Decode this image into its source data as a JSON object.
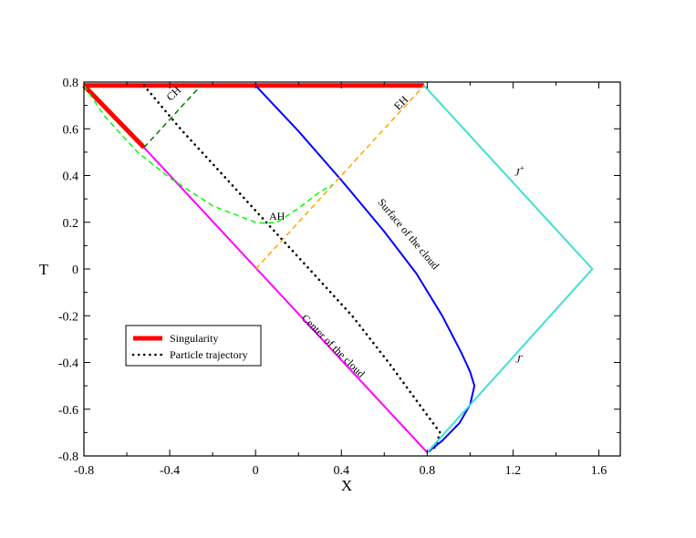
{
  "chart_data": {
    "type": "line",
    "title": "",
    "xlabel": "X",
    "ylabel": "T",
    "xlim": [
      -0.8,
      1.7
    ],
    "ylim": [
      -0.8,
      0.8
    ],
    "xticks": [
      "-0.8",
      "-0.4",
      "0",
      "0.4",
      "0.8",
      "1.2",
      "1.6"
    ],
    "yticks": [
      "-0.8",
      "-0.6",
      "-0.4",
      "-0.2",
      "0",
      "0.2",
      "0.4",
      "0.6",
      "0.8"
    ],
    "grid": false,
    "legend_position": "lower-left",
    "series": [
      {
        "name": "Singularity",
        "color": "#ff0000",
        "style": "solid-thick",
        "segments": [
          [
            [
              -0.8,
              0.785
            ],
            [
              0.785,
              0.785
            ]
          ],
          [
            [
              -0.8,
              0.785
            ],
            [
              -0.52,
              0.52
            ]
          ]
        ]
      },
      {
        "name": "Particle trajectory",
        "color": "#000000",
        "style": "dotted",
        "points": [
          [
            -0.52,
            0.785
          ],
          [
            -0.35,
            0.6
          ],
          [
            -0.15,
            0.4
          ],
          [
            0.05,
            0.2
          ],
          [
            0.25,
            0.0
          ],
          [
            0.45,
            -0.2
          ],
          [
            0.62,
            -0.4
          ],
          [
            0.78,
            -0.6
          ],
          [
            0.86,
            -0.7
          ],
          [
            0.84,
            -0.76
          ],
          [
            0.8,
            -0.785
          ]
        ]
      },
      {
        "color": "#0000ff",
        "style": "solid",
        "points": [
          [
            0.0,
            0.785
          ],
          [
            0.2,
            0.59
          ],
          [
            0.4,
            0.38
          ],
          [
            0.6,
            0.16
          ],
          [
            0.75,
            -0.02
          ],
          [
            0.87,
            -0.2
          ],
          [
            0.96,
            -0.36
          ],
          [
            1.0,
            -0.44
          ],
          [
            1.02,
            -0.5
          ],
          [
            1.0,
            -0.58
          ],
          [
            0.95,
            -0.66
          ],
          [
            0.87,
            -0.735
          ],
          [
            0.8,
            -0.785
          ]
        ]
      },
      {
        "color": "#ff00ff",
        "style": "solid",
        "points": [
          [
            -0.52,
            0.52
          ],
          [
            0.8,
            -0.785
          ]
        ]
      },
      {
        "color": "#40e0d0",
        "style": "solid",
        "points": [
          [
            0.785,
            0.785
          ],
          [
            1.57,
            0.0
          ],
          [
            0.8,
            -0.785
          ]
        ]
      },
      {
        "color": "#ffa500",
        "style": "dashed",
        "points": [
          [
            0.0,
            0.0
          ],
          [
            0.785,
            0.785
          ]
        ]
      },
      {
        "color": "#00ff00",
        "style": "dashed",
        "points": [
          [
            -0.8,
            0.785
          ],
          [
            -0.7,
            0.65
          ],
          [
            -0.55,
            0.5
          ],
          [
            -0.4,
            0.39
          ],
          [
            -0.2,
            0.27
          ],
          [
            0.0,
            0.2
          ],
          [
            0.05,
            0.195
          ],
          [
            0.1,
            0.2
          ],
          [
            0.2,
            0.26
          ],
          [
            0.3,
            0.33
          ],
          [
            0.36,
            0.36
          ]
        ]
      },
      {
        "color": "#008000",
        "style": "dashed",
        "points": [
          [
            -0.52,
            0.52
          ],
          [
            -0.255,
            0.785
          ]
        ]
      }
    ],
    "annotations": [
      {
        "text": "CH",
        "x": -0.37,
        "y": 0.74,
        "rotate": -45
      },
      {
        "text": "EH",
        "x": 0.69,
        "y": 0.7,
        "rotate": -45
      },
      {
        "text": "AH",
        "x": 0.1,
        "y": 0.21,
        "rotate": 0
      },
      {
        "text": "Surface of the cloud",
        "x": 0.7,
        "y": 0.14,
        "rotate": 50
      },
      {
        "text": "Center of the cloud",
        "x": 0.35,
        "y": -0.34,
        "rotate": 45
      },
      {
        "text": "J",
        "sup": "+",
        "x": 1.23,
        "y": 0.4,
        "rotate": 0
      },
      {
        "text": "J",
        "sup": "-",
        "x": 1.23,
        "y": -0.4,
        "rotate": 0
      }
    ]
  }
}
